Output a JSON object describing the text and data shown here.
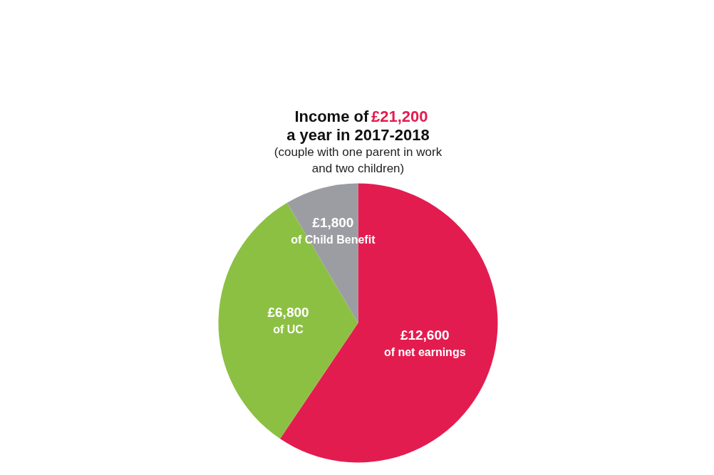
{
  "chart_data": {
    "type": "pie",
    "title": "Income of £21,200 a year in 2017-2018",
    "subtitle": "(couple with one parent in work and two children)",
    "categories": [
      "of net earnings",
      "of UC",
      "of Child Benefit"
    ],
    "values": [
      12600,
      6800,
      1800
    ],
    "value_labels": [
      "£12,600",
      "£6,800",
      "£1,800"
    ],
    "colors": [
      "#e31c4f",
      "#8cc043",
      "#9c9da2"
    ]
  }
}
